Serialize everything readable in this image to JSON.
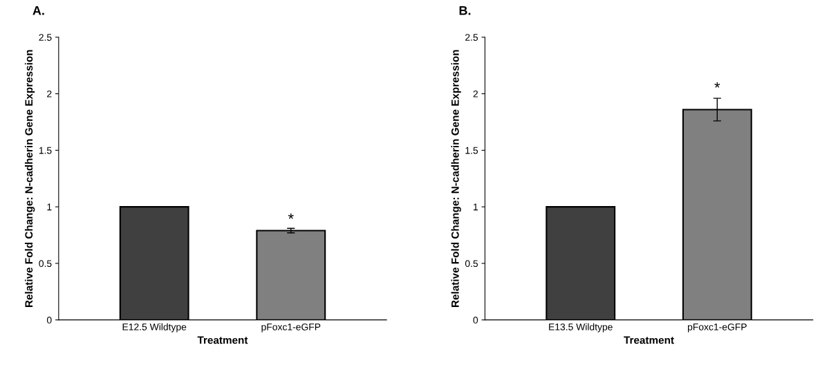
{
  "chart_data": [
    {
      "type": "bar",
      "ylabel": "Relative Fold Change: N-cadherin Gene Expression",
      "xlabel": "Treatment",
      "categories": [
        "E12.5 Wildtype",
        "pFoxc1-eGFP"
      ],
      "values": [
        1.0,
        0.79
      ],
      "colors": [
        "#404040",
        "#808080"
      ],
      "errors": [
        null,
        0.02
      ],
      "ylim": [
        0,
        2.5
      ],
      "yticks": [
        0,
        0.5,
        1,
        1.5,
        2,
        2.5
      ],
      "grid": false,
      "legend": false,
      "annotations": [
        "A.",
        {
          "text": "*",
          "x": "pFoxc1-eGFP",
          "y": 0.82
        }
      ]
    },
    {
      "type": "bar",
      "ylabel": "Relative Fold Change: N-cadherin Gene Expression",
      "xlabel": "Treatment",
      "categories": [
        "E13.5 Wildtype",
        "pFoxc1-eGFP"
      ],
      "values": [
        1.0,
        1.86
      ],
      "colors": [
        "#404040",
        "#808080"
      ],
      "errors": [
        null,
        0.1
      ],
      "ylim": [
        0,
        2.5
      ],
      "yticks": [
        0,
        0.5,
        1,
        1.5,
        2,
        2.5
      ],
      "grid": false,
      "legend": false,
      "annotations": [
        "B.",
        {
          "text": "*",
          "x": "pFoxc1-eGFP",
          "y": 1.98
        }
      ]
    }
  ]
}
